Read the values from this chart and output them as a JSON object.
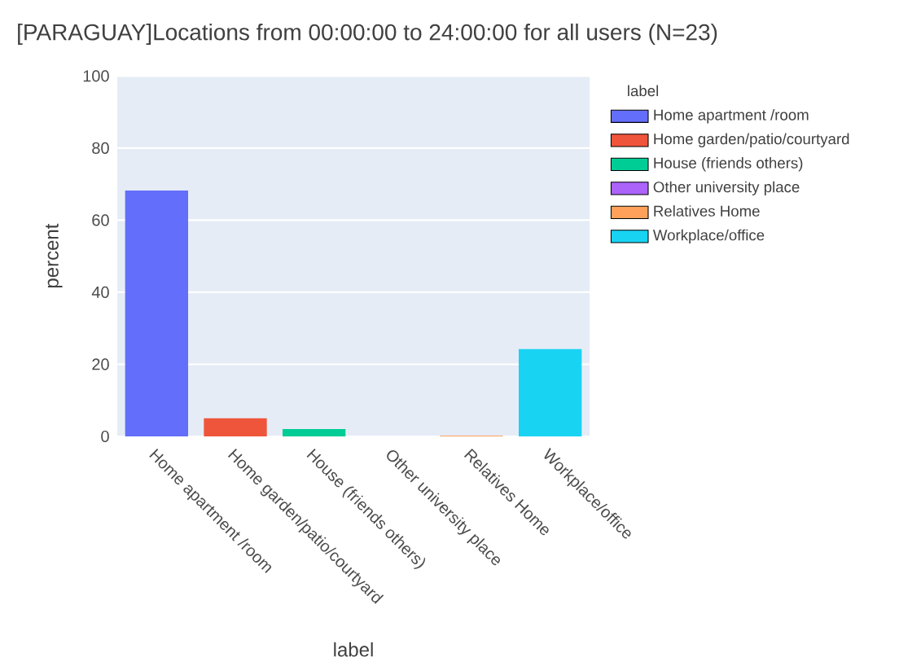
{
  "chart_data": {
    "type": "bar",
    "title": "[PARAGUAY]Locations from 00:00:00 to 24:00:00 for all users (N=23)",
    "xlabel": "label",
    "ylabel": "percent",
    "legend_title": "label",
    "categories": [
      "Home apartment /room",
      "Home garden/patio/courtyard",
      "House (friends others)",
      "Other university place",
      "Relatives Home",
      "Workplace/office"
    ],
    "series": [
      {
        "name": "Home apartment /room",
        "color": "#636efa",
        "values": [
          68.2,
          null,
          null,
          null,
          null,
          null
        ]
      },
      {
        "name": "Home garden/patio/courtyard",
        "color": "#ef553b",
        "values": [
          null,
          5.0,
          null,
          null,
          null,
          null
        ]
      },
      {
        "name": "House (friends others)",
        "color": "#00cc96",
        "values": [
          null,
          null,
          2.0,
          null,
          null,
          null
        ]
      },
      {
        "name": "Other university place",
        "color": "#ab63fa",
        "values": [
          null,
          null,
          null,
          null,
          null,
          null
        ]
      },
      {
        "name": "Relatives Home",
        "color": "#ffa15a",
        "values": [
          null,
          null,
          null,
          null,
          0.2,
          null
        ]
      },
      {
        "name": "Workplace/office",
        "color": "#19d3f3",
        "values": [
          null,
          null,
          null,
          null,
          null,
          24.2
        ]
      }
    ],
    "ylim": [
      0,
      100
    ],
    "yticks": [
      0,
      20,
      40,
      60,
      80,
      100
    ],
    "grid": "y",
    "legend": "right"
  }
}
